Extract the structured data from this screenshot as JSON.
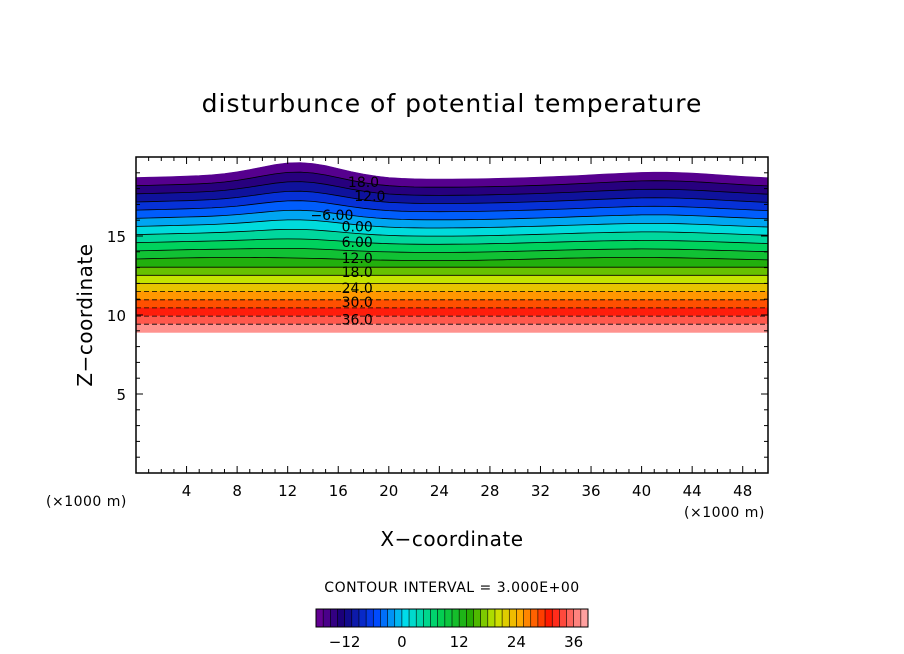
{
  "chart_data": {
    "type": "contour",
    "title": "disturbunce of potential temperature",
    "xlabel": "X−coordinate",
    "ylabel": "Z−coordinate",
    "xunit_left": "(×1000 m)",
    "xunit_right": "(×1000 m)",
    "xlim": [
      0,
      50
    ],
    "ylim": [
      0,
      20
    ],
    "xticks": [
      4,
      8,
      12,
      16,
      20,
      24,
      28,
      32,
      36,
      40,
      44,
      48
    ],
    "yticks": [
      5,
      10,
      15
    ],
    "contour_interval_text": "CONTOUR INTERVAL = 3.000E+00",
    "contour_interval": 3.0,
    "value_range": [
      -18,
      39
    ],
    "field_extent_z": [
      8.9,
      18.7
    ],
    "contour_labels": [
      {
        "text": "18.0",
        "x": 18.0,
        "z": 18.1
      },
      {
        "text": "12.0",
        "x": 18.5,
        "z": 17.2
      },
      {
        "text": "−6.00",
        "x": 15.5,
        "z": 16.0
      },
      {
        "text": "0.00",
        "x": 17.5,
        "z": 15.3
      },
      {
        "text": "6.00",
        "x": 17.5,
        "z": 14.3
      },
      {
        "text": "12.0",
        "x": 17.5,
        "z": 13.3
      },
      {
        "text": "18.0",
        "x": 17.5,
        "z": 12.4
      },
      {
        "text": "24.0",
        "x": 17.5,
        "z": 11.4
      },
      {
        "text": "30.0",
        "x": 17.5,
        "z": 10.5
      },
      {
        "text": "36.0",
        "x": 17.5,
        "z": 9.4
      }
    ],
    "colorbar": {
      "ticks": [
        "−12",
        "0",
        "12",
        "24",
        "36"
      ],
      "tick_values": [
        -12,
        0,
        12,
        24,
        36
      ],
      "range": [
        -18,
        39
      ]
    }
  }
}
